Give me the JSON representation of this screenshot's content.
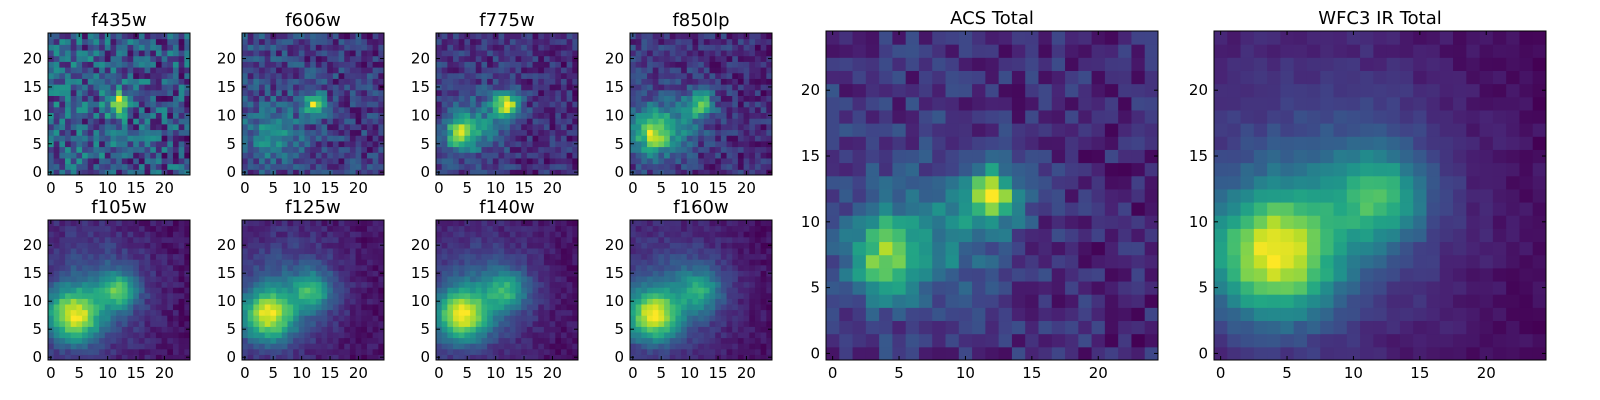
{
  "chart_data": [
    {
      "type": "heatmap",
      "title": "f435w",
      "xticks": [
        "0",
        "5",
        "10",
        "15",
        "20"
      ],
      "yticks": [
        "0",
        "5",
        "10",
        "15",
        "20"
      ],
      "xlim": [
        0,
        25
      ],
      "ylim": [
        0,
        25
      ],
      "colormap": "viridis",
      "noise": 0.32,
      "sources": [
        {
          "x": 12,
          "y": 12,
          "amp": 1.0,
          "sigma": 1.4
        }
      ]
    },
    {
      "type": "heatmap",
      "title": "f606w",
      "xticks": [
        "0",
        "5",
        "10",
        "15",
        "20"
      ],
      "yticks": [
        "0",
        "5",
        "10",
        "15",
        "20"
      ],
      "xlim": [
        0,
        25
      ],
      "ylim": [
        0,
        25
      ],
      "colormap": "viridis",
      "noise": 0.22,
      "sources": [
        {
          "x": 12.5,
          "y": 12,
          "amp": 1.0,
          "sigma": 1.3
        },
        {
          "x": 5,
          "y": 7,
          "amp": 0.35,
          "sigma": 3.5
        }
      ]
    },
    {
      "type": "heatmap",
      "title": "f775w",
      "xticks": [
        "0",
        "5",
        "10",
        "15",
        "20"
      ],
      "yticks": [
        "0",
        "5",
        "10",
        "15",
        "20"
      ],
      "xlim": [
        0,
        25
      ],
      "ylim": [
        0,
        25
      ],
      "colormap": "viridis",
      "noise": 0.18,
      "sources": [
        {
          "x": 12,
          "y": 12,
          "amp": 1.0,
          "sigma": 1.6
        },
        {
          "x": 4,
          "y": 7,
          "amp": 0.85,
          "sigma": 2.2
        },
        {
          "x": 8,
          "y": 9,
          "amp": 0.3,
          "sigma": 3.5
        }
      ]
    },
    {
      "type": "heatmap",
      "title": "f850lp",
      "xticks": [
        "0",
        "5",
        "10",
        "15",
        "20"
      ],
      "yticks": [
        "0",
        "5",
        "10",
        "15",
        "20"
      ],
      "xlim": [
        0,
        25
      ],
      "ylim": [
        0,
        25
      ],
      "colormap": "viridis",
      "noise": 0.2,
      "sources": [
        {
          "x": 12,
          "y": 12,
          "amp": 0.85,
          "sigma": 1.6
        },
        {
          "x": 3.5,
          "y": 7,
          "amp": 1.0,
          "sigma": 2.6
        },
        {
          "x": 8,
          "y": 9,
          "amp": 0.35,
          "sigma": 3.5
        }
      ]
    },
    {
      "type": "heatmap",
      "title": "f105w",
      "xticks": [
        "0",
        "5",
        "10",
        "15",
        "20"
      ],
      "yticks": [
        "0",
        "5",
        "10",
        "15",
        "20"
      ],
      "xlim": [
        0,
        25
      ],
      "ylim": [
        0,
        25
      ],
      "colormap": "viridis",
      "noise": 0.08,
      "sources": [
        {
          "x": 4,
          "y": 7.5,
          "amp": 1.0,
          "sigma": 3.3
        },
        {
          "x": 12,
          "y": 12,
          "amp": 0.6,
          "sigma": 2.2
        },
        {
          "x": 9,
          "y": 12,
          "amp": 0.3,
          "sigma": 6
        }
      ]
    },
    {
      "type": "heatmap",
      "title": "f125w",
      "xticks": [
        "0",
        "5",
        "10",
        "15",
        "20"
      ],
      "yticks": [
        "0",
        "5",
        "10",
        "15",
        "20"
      ],
      "xlim": [
        0,
        25
      ],
      "ylim": [
        0,
        25
      ],
      "colormap": "viridis",
      "noise": 0.08,
      "sources": [
        {
          "x": 4,
          "y": 7.5,
          "amp": 1.0,
          "sigma": 3.3
        },
        {
          "x": 12,
          "y": 12,
          "amp": 0.55,
          "sigma": 2.2
        },
        {
          "x": 9,
          "y": 12,
          "amp": 0.3,
          "sigma": 6
        }
      ]
    },
    {
      "type": "heatmap",
      "title": "f140w",
      "xticks": [
        "0",
        "5",
        "10",
        "15",
        "20"
      ],
      "yticks": [
        "0",
        "5",
        "10",
        "15",
        "20"
      ],
      "xlim": [
        0,
        25
      ],
      "ylim": [
        0,
        25
      ],
      "colormap": "viridis",
      "noise": 0.07,
      "sources": [
        {
          "x": 4,
          "y": 7.5,
          "amp": 1.0,
          "sigma": 3.3
        },
        {
          "x": 12,
          "y": 12,
          "amp": 0.5,
          "sigma": 2.4
        },
        {
          "x": 9,
          "y": 12,
          "amp": 0.3,
          "sigma": 6
        }
      ]
    },
    {
      "type": "heatmap",
      "title": "f160w",
      "xticks": [
        "0",
        "5",
        "10",
        "15",
        "20"
      ],
      "yticks": [
        "0",
        "5",
        "10",
        "15",
        "20"
      ],
      "xlim": [
        0,
        25
      ],
      "ylim": [
        0,
        25
      ],
      "colormap": "viridis",
      "noise": 0.07,
      "sources": [
        {
          "x": 3.5,
          "y": 7.5,
          "amp": 1.0,
          "sigma": 3.3
        },
        {
          "x": 12,
          "y": 12,
          "amp": 0.45,
          "sigma": 2.5
        },
        {
          "x": 9,
          "y": 12,
          "amp": 0.3,
          "sigma": 6
        }
      ]
    },
    {
      "type": "heatmap",
      "title": "ACS Total",
      "xticks": [
        "0",
        "5",
        "10",
        "15",
        "20"
      ],
      "yticks": [
        "0",
        "5",
        "10",
        "15",
        "20"
      ],
      "xlim": [
        0,
        25
      ],
      "ylim": [
        0,
        25
      ],
      "colormap": "viridis",
      "noise": 0.16,
      "sources": [
        {
          "x": 12,
          "y": 12,
          "amp": 1.0,
          "sigma": 1.5
        },
        {
          "x": 4,
          "y": 7.5,
          "amp": 0.75,
          "sigma": 2.2
        },
        {
          "x": 8,
          "y": 9,
          "amp": 0.35,
          "sigma": 4
        }
      ]
    },
    {
      "type": "heatmap",
      "title": "WFC3 IR Total",
      "xticks": [
        "0",
        "5",
        "10",
        "15",
        "20"
      ],
      "yticks": [
        "0",
        "5",
        "10",
        "15",
        "20"
      ],
      "xlim": [
        0,
        25
      ],
      "ylim": [
        0,
        25
      ],
      "colormap": "viridis",
      "noise": 0.05,
      "sources": [
        {
          "x": 4,
          "y": 7.5,
          "amp": 1.0,
          "sigma": 3.4
        },
        {
          "x": 12,
          "y": 12,
          "amp": 0.55,
          "sigma": 2.4
        },
        {
          "x": 9,
          "y": 12,
          "amp": 0.3,
          "sigma": 6.5
        }
      ]
    }
  ]
}
